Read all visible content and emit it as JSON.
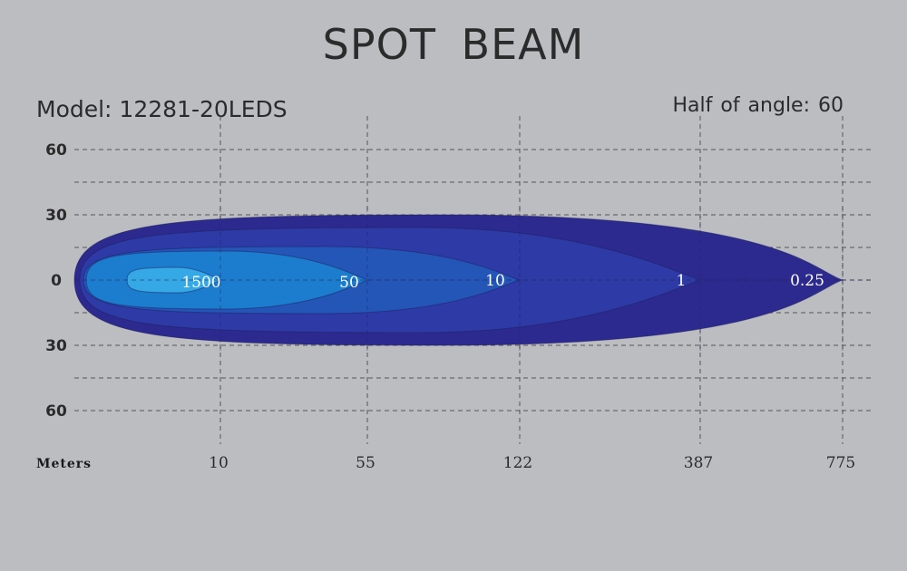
{
  "chart_data": {
    "type": "area",
    "title": "SPOT  BEAM",
    "model_label": "Model: 12281-20LEDS",
    "angle_label": "Half of  angle: 60",
    "xlabel": "Meters",
    "x_ticks": [
      "10",
      "55",
      "122",
      "387",
      "775"
    ],
    "y_ticks": [
      "60",
      "30",
      "0",
      "30",
      "60"
    ],
    "ylim": [
      -60,
      60
    ],
    "grid": true,
    "contours": [
      {
        "label": "0.25",
        "reach": "775",
        "half_angle_deg": 30,
        "color": "#2c2a8f"
      },
      {
        "label": "1",
        "reach": "387",
        "half_angle_deg": 24,
        "color": "#2e3aa6"
      },
      {
        "label": "10",
        "reach": "122",
        "half_angle_deg": 15,
        "color": "#2456b8"
      },
      {
        "label": "50",
        "reach": "55",
        "half_angle_deg": 13,
        "color": "#1c7ccd"
      },
      {
        "label": "1500",
        "reach": "10",
        "half_angle_deg": 6,
        "color": "#35a8e6"
      }
    ],
    "colors": {
      "background": "#bcbdc1",
      "text": "#2b2b2b",
      "grid": "#555555"
    }
  }
}
